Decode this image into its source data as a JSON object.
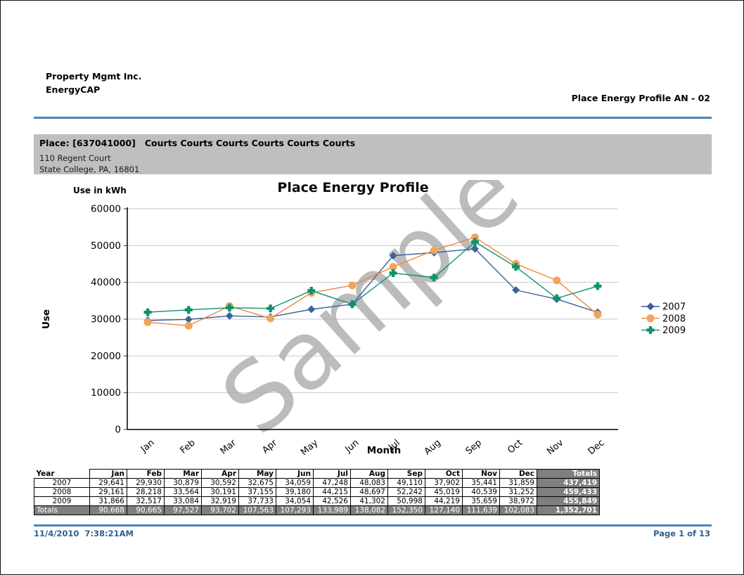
{
  "page": {
    "company_line1": "Property Mgmt Inc.",
    "company_line2": "EnergyCAP",
    "report_title": "Place Energy Profile AN - 02",
    "footer_datetime": "11/4/2010  7:38:21AM",
    "footer_page": "Page 1 of 13",
    "accent_color": "#4F81BD",
    "footer_text_color": "#2E6093"
  },
  "place_banner": {
    "title": "Place: [637041000]   Courts Courts Courts Courts Courts Courts",
    "address_line1": "110 Regent Court",
    "address_line2": "State College, PA, 16801",
    "background": "#BFBFBF"
  },
  "chart_data": {
    "type": "line",
    "title": "Place Energy Profile",
    "units_label": "Use in kWh",
    "xlabel": "Month",
    "ylabel": "Use",
    "watermark": "Sample",
    "categories": [
      "Jan",
      "Feb",
      "Mar",
      "Apr",
      "May",
      "Jun",
      "Jul",
      "Aug",
      "Sep",
      "Oct",
      "Nov",
      "Dec"
    ],
    "ylim": [
      0,
      60000
    ],
    "ytick_step": 10000,
    "grid": true,
    "legend_position": "right",
    "gridline_color": "#C6C8CE",
    "watermark_color": "#ACACAC",
    "series": [
      {
        "name": "2007",
        "marker": "diamond",
        "color": "#3C619B",
        "line_color": "#3C619B",
        "values": [
          29641,
          29930,
          30879,
          30592,
          32675,
          34059,
          47248,
          48083,
          49110,
          37902,
          35441,
          31859
        ]
      },
      {
        "name": "2008",
        "marker": "circle",
        "color": "#F2A45C",
        "line_color": "#E8883C",
        "values": [
          29161,
          28218,
          33564,
          30191,
          37155,
          39180,
          44215,
          48697,
          52242,
          45019,
          40539,
          31252
        ]
      },
      {
        "name": "2009",
        "marker": "cross",
        "color": "#0D9170",
        "line_color": "#0D9170",
        "values": [
          31866,
          32517,
          33084,
          32919,
          37733,
          34054,
          42526,
          41302,
          50998,
          44219,
          35659,
          38972
        ]
      }
    ]
  },
  "table": {
    "year_header": "Year",
    "months": [
      "Jan",
      "Feb",
      "Mar",
      "Apr",
      "May",
      "Jun",
      "Jul",
      "Aug",
      "Sep",
      "Oct",
      "Nov",
      "Dec"
    ],
    "totals_header": "Totals",
    "rows": [
      {
        "year": "2007",
        "values": [
          "29,641",
          "29,930",
          "30,879",
          "30,592",
          "32,675",
          "34,059",
          "47,248",
          "48,083",
          "49,110",
          "37,902",
          "35,441",
          "31,859"
        ],
        "total": "437,419"
      },
      {
        "year": "2008",
        "values": [
          "29,161",
          "28,218",
          "33,564",
          "30,191",
          "37,155",
          "39,180",
          "44,215",
          "48,697",
          "52,242",
          "45,019",
          "40,539",
          "31,252"
        ],
        "total": "459,433"
      },
      {
        "year": "2009",
        "values": [
          "31,866",
          "32,517",
          "33,084",
          "32,919",
          "37,733",
          "34,054",
          "42,526",
          "41,302",
          "50,998",
          "44,219",
          "35,659",
          "38,972"
        ],
        "total": "455,849"
      }
    ],
    "totals_row": {
      "label": "Totals",
      "values": [
        "90,668",
        "90,665",
        "97,527",
        "93,702",
        "107,563",
        "107,293",
        "133,989",
        "138,082",
        "152,350",
        "127,140",
        "111,639",
        "102,083"
      ],
      "grand_total": "1,352,701"
    }
  }
}
